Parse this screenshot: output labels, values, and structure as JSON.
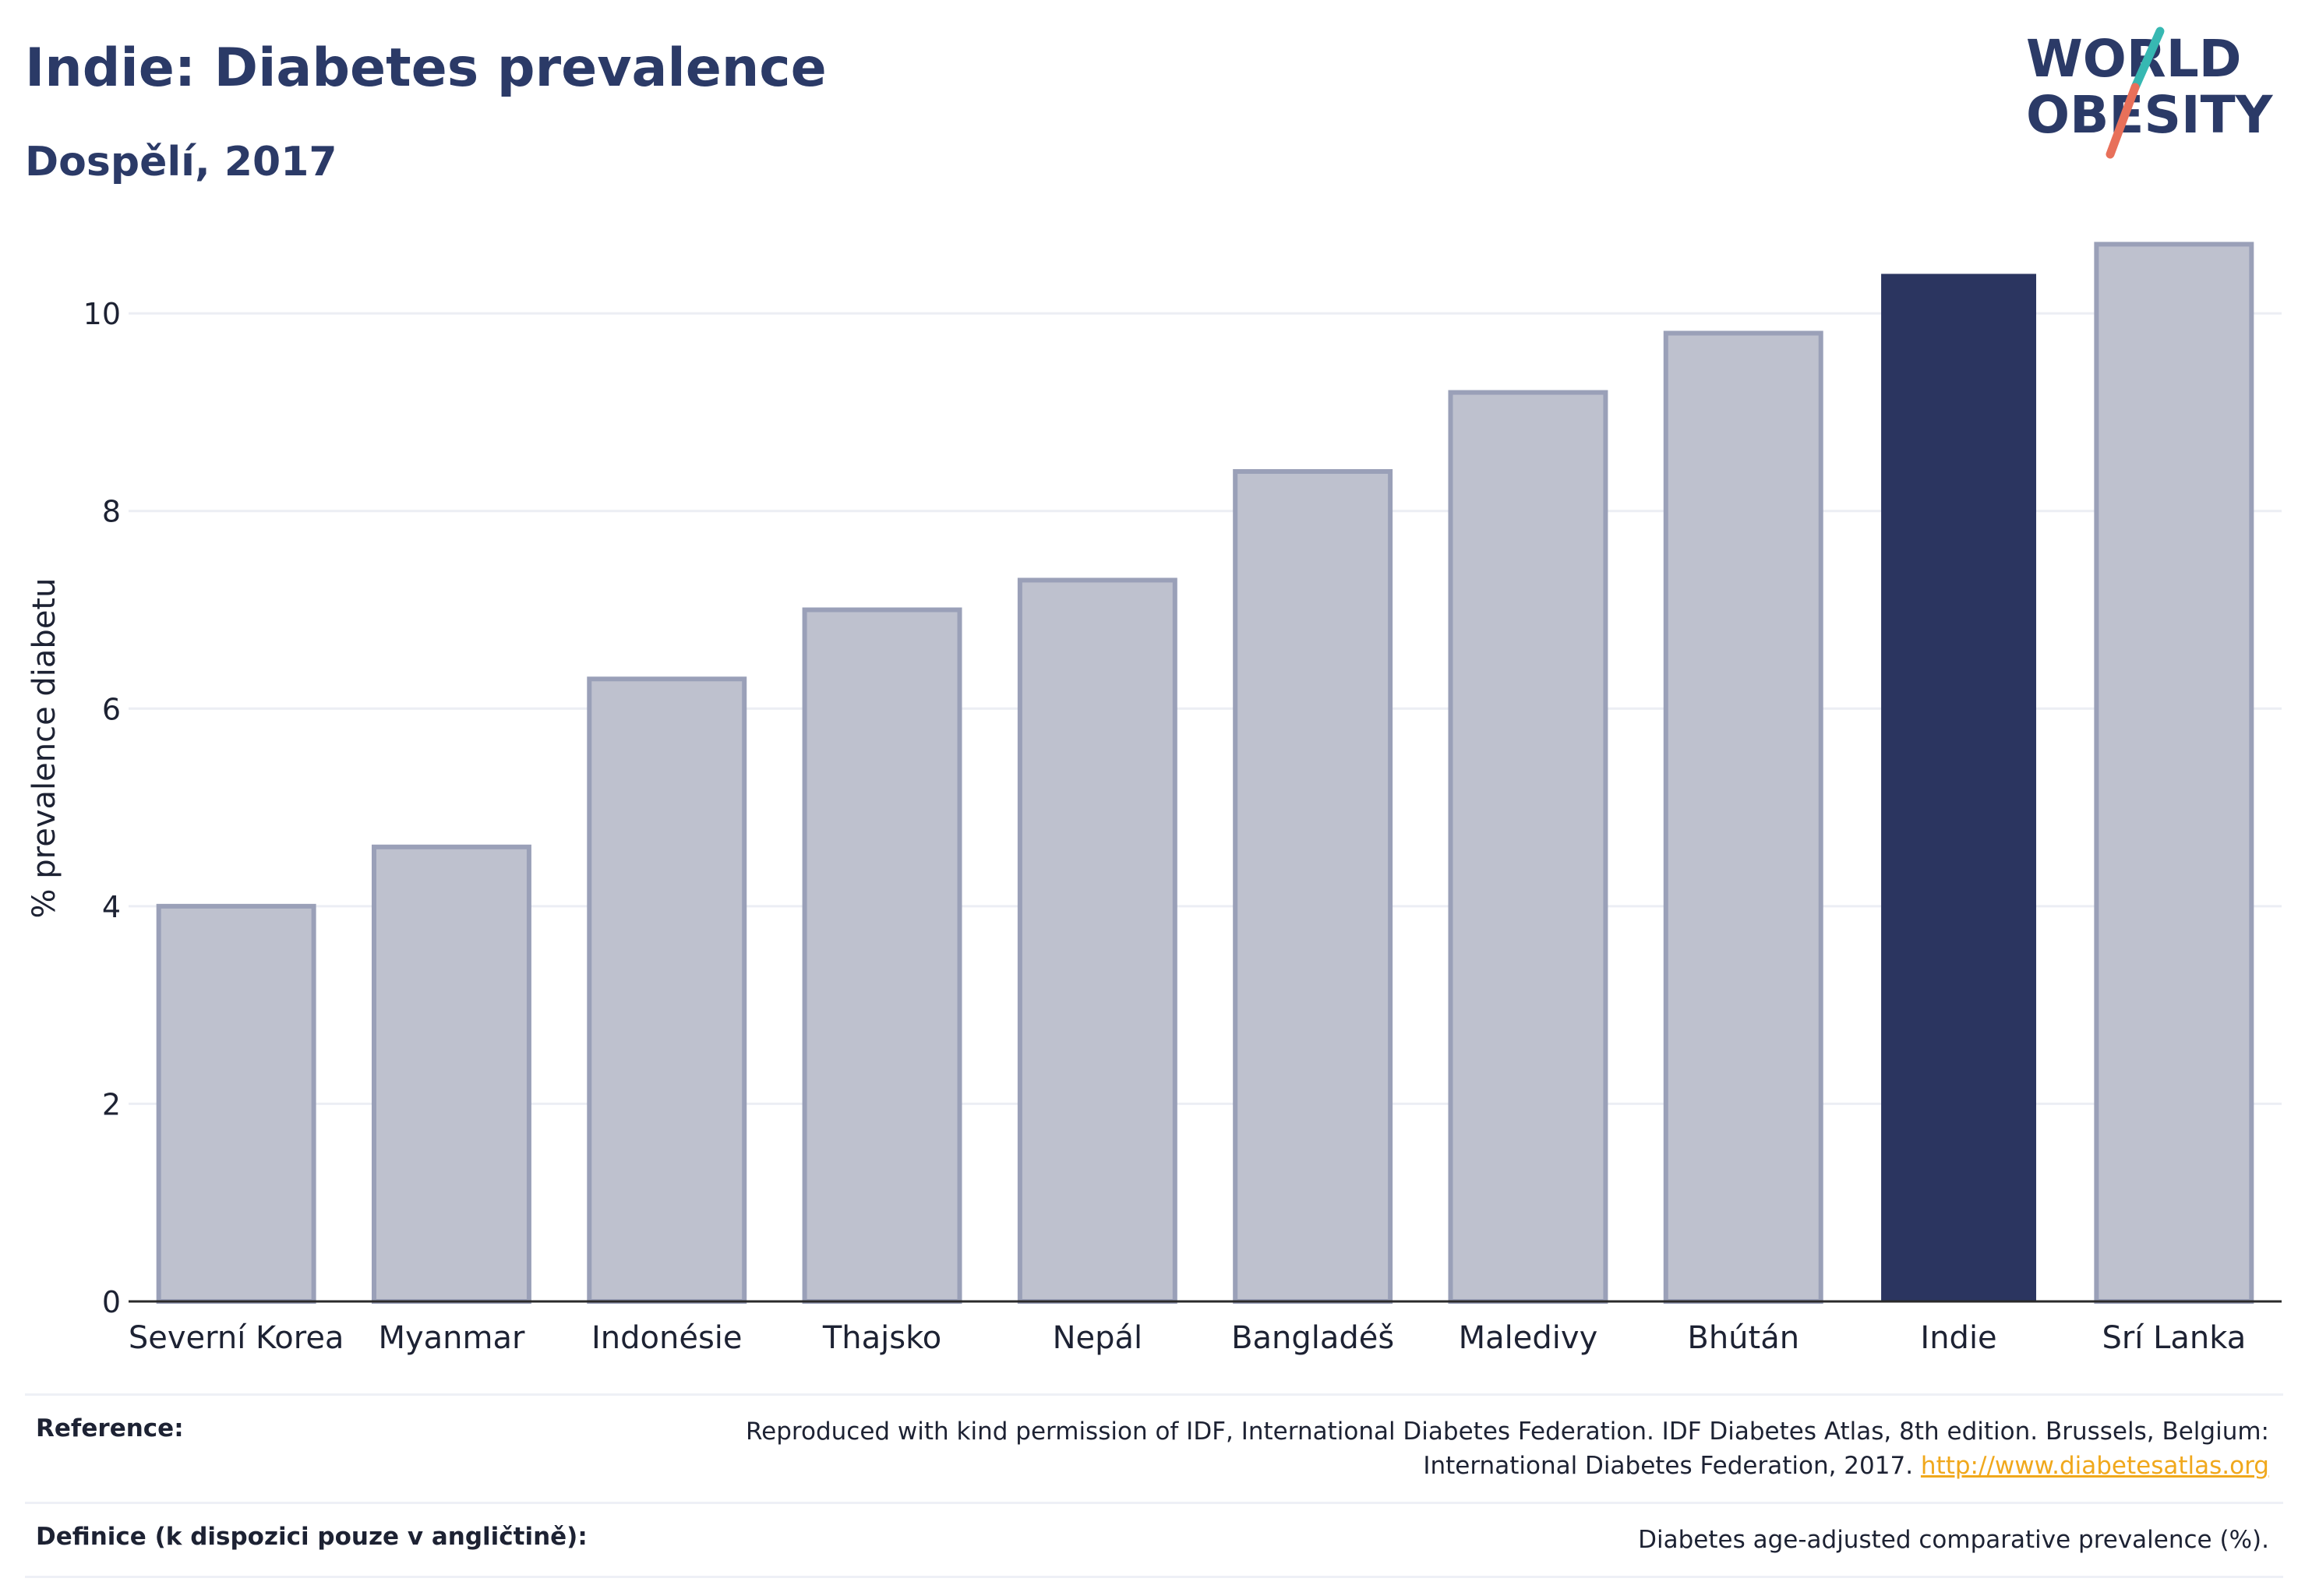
{
  "header": {
    "title": "Indie: Diabetes prevalence",
    "subtitle": "Dospělí, 2017"
  },
  "logo": {
    "line1": "WORLD",
    "line2": "OBESITY",
    "slash_colors": [
      "#37b8b2",
      "#e8705a"
    ]
  },
  "colors": {
    "highlight": "#2b3560",
    "bar": "#bec1ce",
    "bar_outline": "#9aa0b8",
    "title": "#2b3a67",
    "link": "#f0a81c"
  },
  "chart_data": {
    "type": "bar",
    "title": "Indie: Diabetes prevalence",
    "subtitle": "Dospělí, 2017",
    "xlabel": "",
    "ylabel": "% prevalence diabetu",
    "ylim": [
      0,
      11.2
    ],
    "yticks": [
      0,
      2,
      4,
      6,
      8,
      10
    ],
    "grid": true,
    "categories": [
      "Severní Korea",
      "Myanmar",
      "Indonésie",
      "Thajsko",
      "Nepál",
      "Bangladéš",
      "Maledivy",
      "Bhútán",
      "Indie",
      "Srí Lanka"
    ],
    "values": [
      4.0,
      4.6,
      6.3,
      7.0,
      7.3,
      8.4,
      9.2,
      9.8,
      10.4,
      10.7
    ],
    "highlight": "Indie"
  },
  "references": {
    "reference_label": "Reference:",
    "reference_line1": "Reproduced with kind permission of IDF, International Diabetes Federation. IDF Diabetes Atlas, 8th edition. Brussels, Belgium:",
    "reference_line2": "International Diabetes Federation, 2017.",
    "reference_link": "http://www.diabetesatlas.org",
    "definition_label": "Definice (k dispozici pouze v angličtině):",
    "definition_text": "Diabetes age-adjusted comparative prevalence (%)."
  }
}
